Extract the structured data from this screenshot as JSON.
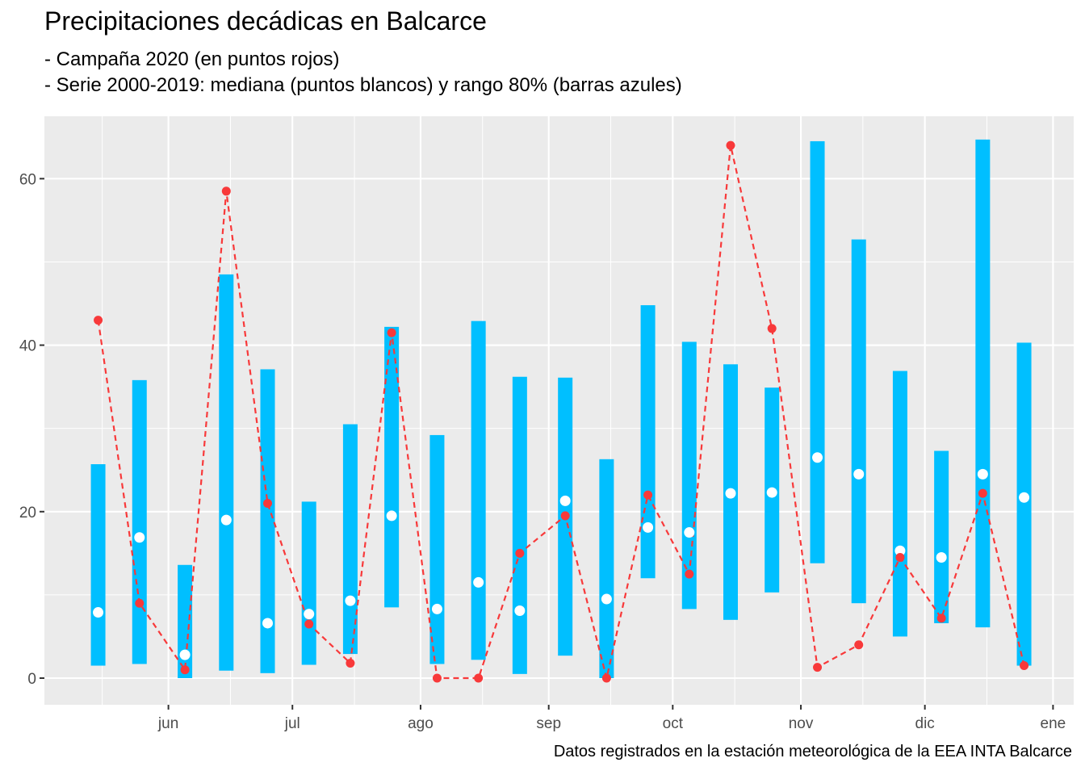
{
  "header": {
    "title": "Precipitaciones decádicas en Balcarce",
    "subtitle_1": "- Campaña 2020 (en puntos rojos)",
    "subtitle_2": "- Serie 2000-2019: mediana (puntos blancos) y rango 80% (barras azules)"
  },
  "caption": "Datos registrados en la estación meteorológica de la EEA INTA Balcarce",
  "chart_data": {
    "type": "line",
    "title": "Precipitaciones decádicas en Balcarce",
    "xlabel": "",
    "ylabel": "",
    "x_reference": "2020-05-15",
    "x_axis": {
      "ticks": [
        {
          "date": "2020-06-01",
          "label": "jun"
        },
        {
          "date": "2020-07-01",
          "label": "jul"
        },
        {
          "date": "2020-08-01",
          "label": "ago"
        },
        {
          "date": "2020-09-01",
          "label": "sep"
        },
        {
          "date": "2020-10-01",
          "label": "oct"
        },
        {
          "date": "2020-11-01",
          "label": "nov"
        },
        {
          "date": "2020-12-01",
          "label": "dic"
        },
        {
          "date": "2021-01-01",
          "label": "ene"
        }
      ],
      "minor_ticks": [
        "2020-05-16",
        "2020-06-16",
        "2020-07-16",
        "2020-08-16",
        "2020-09-16",
        "2020-10-16",
        "2020-11-16",
        "2020-12-16"
      ],
      "range": [
        "2020-05-02",
        "2021-01-06"
      ]
    },
    "y_axis": {
      "ticks": [
        0,
        20,
        40,
        60
      ],
      "minor_ticks": [
        10,
        30,
        50
      ],
      "range": [
        -3.2,
        67.5
      ]
    },
    "x": [
      "2020-05-15",
      "2020-05-25",
      "2020-06-05",
      "2020-06-15",
      "2020-06-25",
      "2020-07-05",
      "2020-07-15",
      "2020-07-25",
      "2020-08-05",
      "2020-08-15",
      "2020-08-25",
      "2020-09-05",
      "2020-09-15",
      "2020-09-25",
      "2020-10-05",
      "2020-10-15",
      "2020-10-25",
      "2020-11-05",
      "2020-11-15",
      "2020-11-25",
      "2020-12-05",
      "2020-12-15",
      "2020-12-25"
    ],
    "series": [
      {
        "name": "Campaña 2020",
        "kind": "points-dashed-line",
        "color": "#f8393a",
        "values": [
          43,
          9,
          1,
          58.5,
          21,
          6.5,
          1.8,
          41.5,
          0,
          0,
          15,
          19.5,
          0,
          22,
          12.5,
          64,
          42,
          1.3,
          4,
          14.5,
          7.2,
          22.2,
          1.5
        ]
      },
      {
        "name": "Serie 2000-2019 mediana",
        "kind": "points",
        "color": "#ffffff",
        "values": [
          7.9,
          16.9,
          2.8,
          19,
          6.6,
          7.7,
          9.3,
          19.5,
          8.3,
          11.5,
          8.1,
          21.3,
          9.5,
          18.1,
          17.5,
          22.2,
          22.3,
          26.5,
          24.5,
          15.3,
          14.5,
          24.5,
          21.7
        ]
      },
      {
        "name": "Serie 2000-2019 rango 80%",
        "kind": "range-bars",
        "color": "#00bfff",
        "low": [
          1.5,
          1.7,
          0,
          0.9,
          0.6,
          1.6,
          2.9,
          8.5,
          1.7,
          2.2,
          0.5,
          2.7,
          0,
          12,
          8.3,
          7,
          10.3,
          13.8,
          9,
          5,
          6.6,
          6.1,
          1.5
        ],
        "high": [
          25.7,
          35.8,
          13.6,
          48.5,
          37.1,
          21.2,
          30.5,
          42.2,
          29.2,
          42.9,
          36.2,
          36.1,
          26.3,
          44.8,
          40.4,
          37.7,
          34.9,
          64.5,
          52.7,
          36.9,
          27.3,
          64.7,
          40.3
        ]
      }
    ],
    "grid": true,
    "colors": {
      "panel_background": "#ebebeb",
      "grid": "#ffffff",
      "axis_text": "#4d4d4d"
    }
  }
}
